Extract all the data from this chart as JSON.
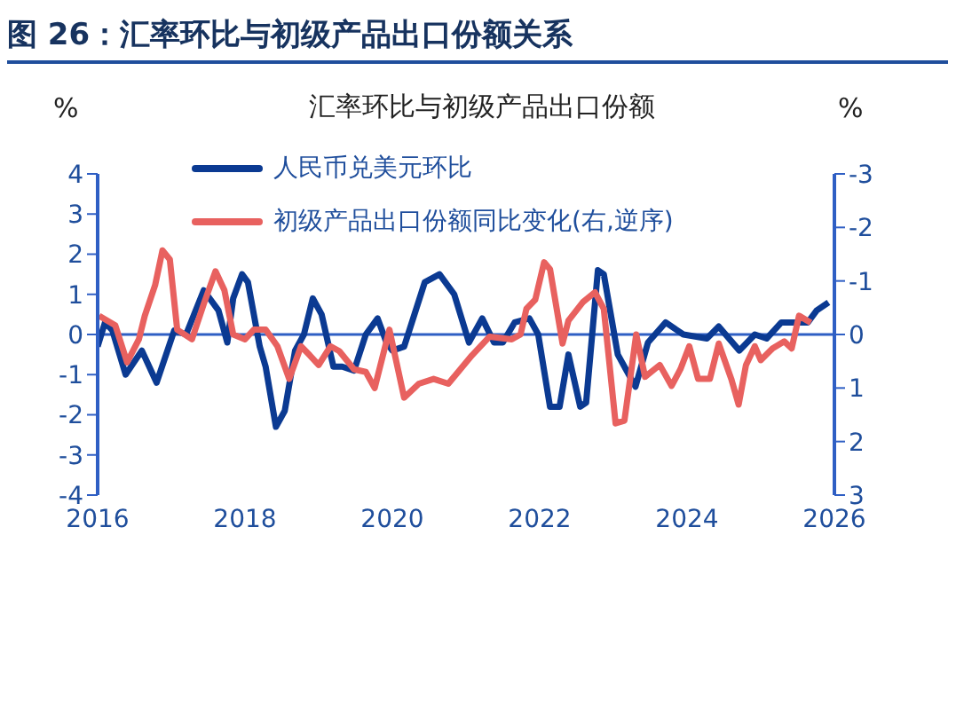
{
  "chart_data": {
    "type": "line",
    "title": "图 26：汇率环比与初级产品出口份额关系",
    "subtitle": "汇率环比与初级产品出口份额",
    "ylabel": "%",
    "y2label": "%",
    "xlim": [
      2016,
      2026
    ],
    "xticks": [
      2016,
      2018,
      2020,
      2022,
      2024,
      2026
    ],
    "ylim": [
      -4,
      4
    ],
    "yticks": [
      -4,
      -3,
      -2,
      -1,
      0,
      1,
      2,
      3,
      4
    ],
    "y2lim": [
      3,
      -3
    ],
    "y2ticks": [
      -3,
      -2,
      -1,
      0,
      1,
      2,
      3
    ],
    "grid": false,
    "legend": "top left",
    "marker": "none",
    "line_style": "solid",
    "ref_lines": [
      {
        "axis": "y",
        "value": 0,
        "color": "#2f5fc4"
      }
    ],
    "series": [
      {
        "name": "人民币兑美元环比",
        "color": "#0b3a92",
        "axis": "y",
        "x": [
          2016.0,
          2016.1,
          2016.2,
          2016.38,
          2016.6,
          2016.8,
          2017.04,
          2017.2,
          2017.44,
          2017.64,
          2017.76,
          2017.84,
          2017.96,
          2018.04,
          2018.2,
          2018.28,
          2018.42,
          2018.54,
          2018.68,
          2018.8,
          2018.92,
          2019.04,
          2019.2,
          2019.32,
          2019.48,
          2019.64,
          2019.8,
          2019.92,
          2020.0,
          2020.16,
          2020.44,
          2020.64,
          2020.84,
          2021.04,
          2021.22,
          2021.38,
          2021.5,
          2021.66,
          2021.86,
          2021.98,
          2022.14,
          2022.27,
          2022.39,
          2022.55,
          2022.63,
          2022.79,
          2022.87,
          2023.06,
          2023.18,
          2023.3,
          2023.47,
          2023.71,
          2023.95,
          2024.27,
          2024.43,
          2024.71,
          2024.92,
          2025.08,
          2025.28,
          2025.44,
          2025.64,
          2025.76,
          2025.92
        ],
        "values": [
          -0.3,
          0.3,
          0.1,
          -1.0,
          -0.4,
          -1.2,
          0.1,
          0.0,
          1.1,
          0.6,
          -0.2,
          0.9,
          1.5,
          1.3,
          -0.3,
          -0.8,
          -2.3,
          -1.9,
          -0.4,
          0.0,
          0.9,
          0.5,
          -0.8,
          -0.8,
          -0.9,
          0.0,
          0.4,
          -0.2,
          -0.4,
          -0.3,
          1.3,
          1.5,
          1.0,
          -0.2,
          0.4,
          -0.2,
          -0.2,
          0.3,
          0.4,
          0.0,
          -1.8,
          -1.8,
          -0.5,
          -1.8,
          -1.7,
          1.6,
          1.5,
          -0.5,
          -0.9,
          -1.3,
          -0.2,
          0.3,
          0.0,
          -0.1,
          0.2,
          -0.4,
          0.0,
          -0.1,
          0.3,
          0.3,
          0.3,
          0.6,
          0.8
        ]
      },
      {
        "name": "初级产品出口份额同比变化(右,逆序)",
        "color": "#e8615f",
        "axis": "y2",
        "x": [
          2016.02,
          2016.24,
          2016.4,
          2016.56,
          2016.64,
          2016.78,
          2016.88,
          2016.98,
          2017.08,
          2017.28,
          2017.44,
          2017.6,
          2017.72,
          2017.84,
          2018.0,
          2018.12,
          2018.28,
          2018.44,
          2018.6,
          2018.76,
          2018.88,
          2019.0,
          2019.16,
          2019.28,
          2019.48,
          2019.64,
          2019.76,
          2019.96,
          2020.16,
          2020.36,
          2020.56,
          2020.76,
          2021.08,
          2021.32,
          2021.62,
          2021.74,
          2021.82,
          2021.94,
          2022.06,
          2022.14,
          2022.31,
          2022.39,
          2022.59,
          2022.75,
          2022.87,
          2023.03,
          2023.15,
          2023.31,
          2023.43,
          2023.63,
          2023.79,
          2023.91,
          2024.03,
          2024.15,
          2024.31,
          2024.43,
          2024.6,
          2024.7,
          2024.8,
          2024.92,
          2025.0,
          2025.16,
          2025.32,
          2025.42,
          2025.52,
          2025.68
        ],
        "values": [
          -0.35,
          -0.17,
          0.52,
          0.09,
          -0.35,
          -0.92,
          -1.57,
          -1.4,
          -0.09,
          0.09,
          -0.57,
          -1.18,
          -0.83,
          0.0,
          0.09,
          -0.09,
          -0.09,
          0.22,
          0.83,
          0.22,
          0.39,
          0.57,
          0.22,
          0.31,
          0.65,
          0.7,
          1.0,
          -0.09,
          1.18,
          0.92,
          0.83,
          0.92,
          0.39,
          0.04,
          0.09,
          0.0,
          -0.48,
          -0.65,
          -1.35,
          -1.22,
          0.17,
          -0.26,
          -0.61,
          -0.79,
          -0.48,
          1.66,
          1.61,
          0.0,
          0.79,
          0.57,
          0.96,
          0.65,
          0.22,
          0.83,
          0.83,
          0.17,
          0.83,
          1.31,
          0.57,
          0.22,
          0.48,
          0.26,
          0.13,
          0.26,
          -0.35,
          -0.22
        ]
      }
    ]
  }
}
